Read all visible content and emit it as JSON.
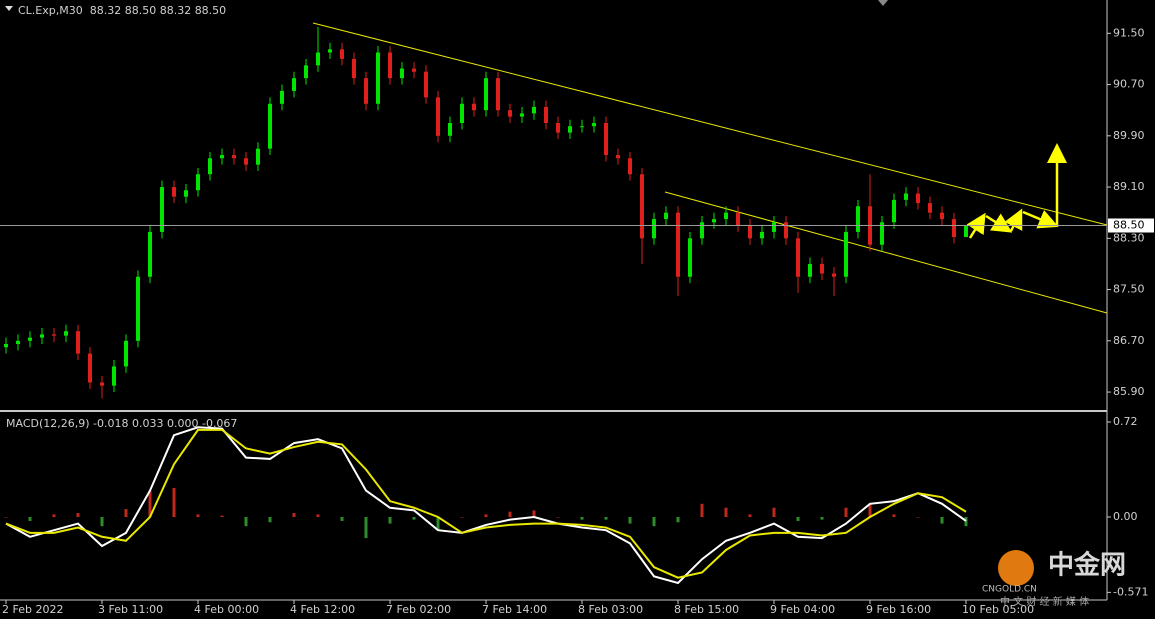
{
  "chart_data": [
    {
      "type": "candlestick",
      "title": "CL.Exp,M30  88.32 88.50 88.32 88.50",
      "open": [
        86.6,
        86.65,
        86.7,
        86.75,
        86.8,
        86.78,
        86.85,
        86.5,
        86.05,
        86.0,
        86.3,
        86.7,
        87.7,
        88.4,
        89.1,
        88.95,
        89.05,
        89.3,
        89.55,
        89.6,
        89.55,
        89.45,
        89.7,
        90.4,
        90.6,
        90.8,
        91.0,
        91.2,
        91.25,
        91.1,
        90.8,
        90.4,
        91.2,
        90.8,
        90.95,
        90.9,
        90.5,
        89.9,
        90.1,
        90.4,
        90.3,
        90.8,
        90.3,
        90.2,
        90.25,
        90.35,
        90.1,
        89.95,
        90.05,
        90.05,
        90.1,
        89.6,
        89.55,
        89.3,
        88.3,
        88.6,
        88.7,
        87.7,
        88.3,
        88.55,
        88.6,
        88.7,
        88.5,
        88.3,
        88.4,
        88.55,
        88.3,
        87.7,
        87.9,
        87.75,
        87.7,
        88.4,
        88.8,
        88.2,
        88.55,
        88.9,
        89.0,
        88.85,
        88.7,
        88.6,
        88.32
      ],
      "high": [
        86.75,
        86.8,
        86.85,
        86.9,
        86.9,
        86.95,
        86.95,
        86.6,
        86.15,
        86.4,
        86.8,
        87.8,
        88.5,
        89.2,
        89.2,
        89.15,
        89.4,
        89.65,
        89.7,
        89.7,
        89.65,
        89.8,
        90.5,
        90.7,
        90.9,
        91.1,
        91.6,
        91.35,
        91.35,
        91.2,
        90.9,
        91.3,
        91.3,
        91.05,
        91.05,
        91.0,
        90.6,
        90.2,
        90.5,
        90.5,
        90.9,
        90.9,
        90.4,
        90.35,
        90.45,
        90.45,
        90.2,
        90.15,
        90.15,
        90.2,
        90.2,
        89.7,
        89.65,
        89.4,
        88.7,
        88.8,
        88.8,
        88.4,
        88.65,
        88.7,
        88.8,
        88.8,
        88.6,
        88.5,
        88.65,
        88.65,
        88.4,
        88.0,
        88.0,
        87.85,
        88.5,
        88.9,
        89.3,
        88.65,
        89.0,
        89.1,
        89.1,
        88.95,
        88.8,
        88.7,
        88.5
      ],
      "low": [
        86.5,
        86.55,
        86.6,
        86.65,
        86.68,
        86.68,
        86.4,
        85.95,
        85.8,
        85.9,
        86.2,
        86.6,
        87.6,
        88.3,
        88.85,
        88.85,
        88.95,
        89.2,
        89.45,
        89.45,
        89.35,
        89.35,
        89.6,
        90.3,
        90.5,
        90.7,
        90.9,
        91.1,
        91.0,
        90.7,
        90.3,
        90.3,
        90.7,
        90.7,
        90.8,
        90.4,
        89.8,
        89.8,
        90.0,
        90.2,
        90.2,
        90.2,
        90.1,
        90.1,
        90.15,
        90.0,
        89.85,
        89.85,
        89.95,
        89.95,
        89.5,
        89.45,
        89.2,
        87.9,
        88.2,
        88.5,
        87.4,
        87.6,
        88.2,
        88.45,
        88.5,
        88.4,
        88.2,
        88.2,
        88.3,
        88.2,
        87.45,
        87.6,
        87.65,
        87.4,
        87.6,
        88.3,
        88.1,
        88.1,
        88.45,
        88.8,
        88.75,
        88.6,
        88.5,
        88.22,
        88.32
      ],
      "close": [
        86.65,
        86.7,
        86.75,
        86.8,
        86.78,
        86.85,
        86.5,
        86.05,
        86.0,
        86.3,
        86.7,
        87.7,
        88.4,
        89.1,
        88.95,
        89.05,
        89.3,
        89.55,
        89.6,
        89.55,
        89.45,
        89.7,
        90.4,
        90.6,
        90.8,
        91.0,
        91.2,
        91.25,
        91.1,
        90.8,
        90.4,
        91.2,
        90.8,
        90.95,
        90.9,
        90.5,
        89.9,
        90.1,
        90.4,
        90.3,
        90.8,
        90.3,
        90.2,
        90.25,
        90.35,
        90.1,
        89.95,
        90.05,
        90.05,
        90.1,
        89.6,
        89.55,
        89.3,
        88.3,
        88.6,
        88.7,
        87.7,
        88.3,
        88.55,
        88.6,
        88.7,
        88.5,
        88.3,
        88.4,
        88.55,
        88.3,
        87.7,
        87.9,
        87.75,
        87.7,
        88.4,
        88.8,
        88.2,
        88.55,
        88.9,
        89.0,
        88.85,
        88.7,
        88.6,
        88.32,
        88.5
      ],
      "up_color": "#00e600",
      "down_color": "#e0201c",
      "xlim": [
        -0.5,
        91.75
      ],
      "ylim": [
        85.62,
        92.02
      ],
      "yticks": [
        {
          "value": 91.5,
          "label": "91.50"
        },
        {
          "value": 90.7,
          "label": "90.70"
        },
        {
          "value": 89.9,
          "label": "89.90"
        },
        {
          "value": 89.1,
          "label": "89.10"
        },
        {
          "value": 88.3,
          "label": "88.30"
        },
        {
          "value": 87.5,
          "label": "87.50"
        },
        {
          "value": 86.7,
          "label": "86.70"
        },
        {
          "value": 85.9,
          "label": "85.90"
        }
      ],
      "price_line": {
        "value": 88.5,
        "label": "88.50"
      },
      "grid": false
    },
    {
      "type": "macd",
      "title": "MACD(12,26,9) -0.018 0.033 0.000 -0.067",
      "x": [
        0,
        2,
        4,
        6,
        8,
        10,
        12,
        14,
        16,
        18,
        20,
        22,
        24,
        26,
        28,
        30,
        32,
        34,
        36,
        38,
        40,
        42,
        44,
        46,
        48,
        50,
        52,
        54,
        56,
        58,
        60,
        62,
        64,
        66,
        68,
        70,
        72,
        74,
        76,
        78,
        80
      ],
      "series": [
        {
          "color": "#ffffff",
          "values": [
            -0.05,
            -0.15,
            -0.1,
            -0.05,
            -0.22,
            -0.12,
            0.2,
            0.62,
            0.68,
            0.67,
            0.45,
            0.44,
            0.56,
            0.59,
            0.52,
            0.2,
            0.07,
            0.05,
            -0.1,
            -0.12,
            -0.06,
            -0.02,
            0.0,
            -0.05,
            -0.08,
            -0.1,
            -0.2,
            -0.45,
            -0.5,
            -0.32,
            -0.18,
            -0.12,
            -0.05,
            -0.15,
            -0.16,
            -0.05,
            0.1,
            0.12,
            0.18,
            0.1,
            -0.03
          ]
        },
        {
          "color": "#e8e800",
          "values": [
            -0.05,
            -0.12,
            -0.12,
            -0.08,
            -0.15,
            -0.18,
            0.0,
            0.4,
            0.66,
            0.66,
            0.52,
            0.48,
            0.53,
            0.57,
            0.55,
            0.36,
            0.12,
            0.07,
            0.0,
            -0.12,
            -0.08,
            -0.06,
            -0.05,
            -0.05,
            -0.06,
            -0.08,
            -0.15,
            -0.38,
            -0.46,
            -0.42,
            -0.25,
            -0.14,
            -0.12,
            -0.12,
            -0.14,
            -0.12,
            0.0,
            0.1,
            0.18,
            0.15,
            0.04
          ]
        }
      ],
      "histogram": [
        0.0,
        -0.03,
        0.02,
        0.03,
        -0.07,
        0.06,
        0.2,
        0.22,
        0.02,
        0.01,
        -0.07,
        -0.04,
        0.03,
        0.02,
        -0.03,
        -0.16,
        -0.05,
        -0.02,
        -0.1,
        0.0,
        0.02,
        0.04,
        0.05,
        0.0,
        -0.02,
        -0.02,
        -0.05,
        -0.07,
        -0.04,
        0.1,
        0.07,
        0.02,
        0.07,
        -0.03,
        -0.02,
        0.07,
        0.1,
        0.02,
        0.0,
        -0.05,
        -0.07
      ],
      "hist_up_color": "#c0281c",
      "hist_down_color": "#2e8b2e",
      "xlim": [
        -0.5,
        91.75
      ],
      "ylim": [
        -0.629,
        0.788
      ],
      "yticks": [
        0.72,
        {
          "value": 0,
          "label": "0.00"
        },
        -0.571
      ],
      "xticks": [
        {
          "value": 0,
          "label": "2 Feb 2022"
        },
        {
          "value": 8,
          "label": "3 Feb 11:00"
        },
        {
          "value": 16,
          "label": "4 Feb 00:00"
        },
        {
          "value": 24,
          "label": "4 Feb 12:00"
        },
        {
          "value": 32,
          "label": "7 Feb 02:00"
        },
        {
          "value": 40,
          "label": "7 Feb 14:00"
        },
        {
          "value": 48,
          "label": "8 Feb 03:00"
        },
        {
          "value": 56,
          "label": "8 Feb 15:00"
        },
        {
          "value": 64,
          "label": "9 Feb 04:00"
        },
        {
          "value": 72,
          "label": "9 Feb 16:00"
        },
        {
          "value": 80,
          "label": "10 Feb 05:00"
        }
      ]
    }
  ],
  "watermark": {
    "name": "中金网",
    "site": "CNGOLD.CN",
    "slogan": "中 文 财 经 新 媒 体"
  }
}
